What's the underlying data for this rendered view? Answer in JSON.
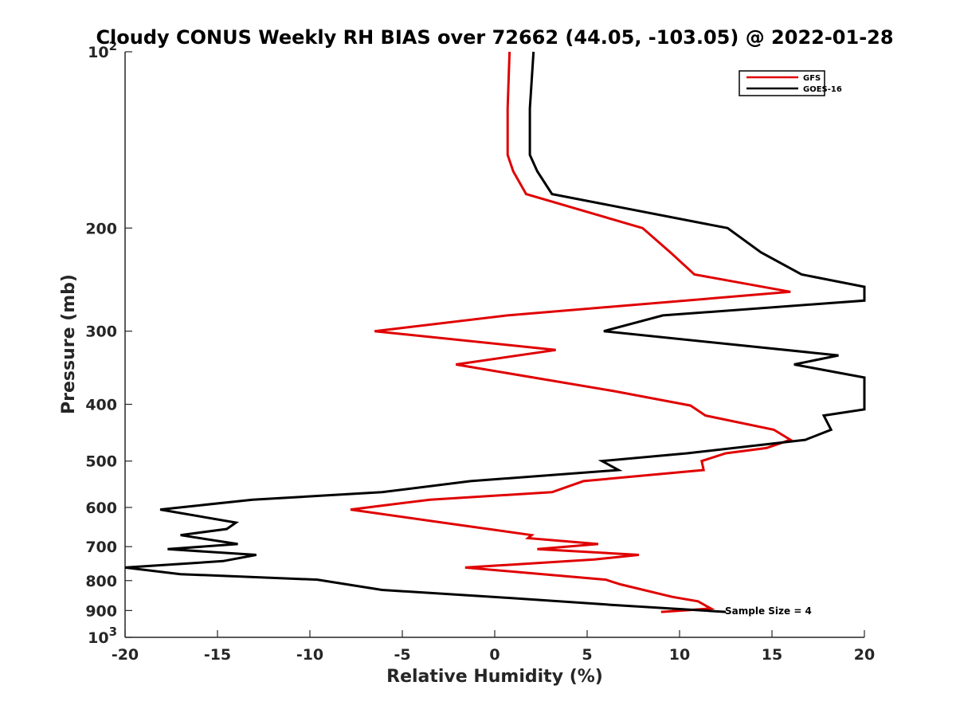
{
  "chart_data": {
    "type": "line",
    "title": "Cloudy CONUS Weekly RH BIAS over 72662 (44.05, -103.05) @ 2022-01-28",
    "xlabel": "Relative Humidity (%)",
    "ylabel": "Pressure (mb)",
    "xlim": [
      -20,
      20
    ],
    "ylim": [
      100,
      1000
    ],
    "yscale": "log",
    "y_reversed": true,
    "x_ticks": [
      "-20",
      "-15",
      "-10",
      "-5",
      "0",
      "5",
      "10",
      "15",
      "20"
    ],
    "y_tick_labels": {
      "p100": {
        "base": "10",
        "exp": "2"
      },
      "p200": "200",
      "p300": "300",
      "p400": "400",
      "p500": "500",
      "p600": "600",
      "p700": "700",
      "p800": "800",
      "p900": "900",
      "p1000": {
        "base": "10",
        "exp": "3"
      }
    },
    "grid": false,
    "legend_position": "top-right",
    "annotation": "Sample Size = 4",
    "series": [
      {
        "name": "GFS",
        "color": "#e00000",
        "points": [
          [
            0.8,
            100
          ],
          [
            0.7,
            125
          ],
          [
            0.7,
            150
          ],
          [
            1.0,
            160
          ],
          [
            1.7,
            175
          ],
          [
            8.0,
            200
          ],
          [
            9.5,
            220
          ],
          [
            10.8,
            240
          ],
          [
            16.0,
            257
          ],
          [
            0.7,
            282
          ],
          [
            -6.5,
            300
          ],
          [
            3.3,
            323
          ],
          [
            -2.1,
            342
          ],
          [
            6.5,
            380
          ],
          [
            10.6,
            402
          ],
          [
            11.4,
            418
          ],
          [
            15.1,
            442
          ],
          [
            16.0,
            460
          ],
          [
            14.7,
            475
          ],
          [
            12.5,
            485
          ],
          [
            11.2,
            500
          ],
          [
            11.3,
            518
          ],
          [
            4.8,
            541
          ],
          [
            3.1,
            565
          ],
          [
            -3.5,
            582
          ],
          [
            -7.8,
            605
          ],
          [
            -1.9,
            643
          ],
          [
            2.0,
            669
          ],
          [
            1.8,
            677
          ],
          [
            5.6,
            693
          ],
          [
            2.3,
            707
          ],
          [
            7.8,
            723
          ],
          [
            5.4,
            736
          ],
          [
            -1.6,
            760
          ],
          [
            6.0,
            797
          ],
          [
            6.8,
            812
          ],
          [
            9.6,
            853
          ],
          [
            11.0,
            868
          ],
          [
            11.7,
            893
          ],
          [
            9.0,
            905
          ]
        ]
      },
      {
        "name": "GOES-16",
        "color": "#000000",
        "points": [
          [
            2.1,
            100
          ],
          [
            1.9,
            125
          ],
          [
            1.9,
            150
          ],
          [
            2.3,
            160
          ],
          [
            3.1,
            175
          ],
          [
            12.6,
            200
          ],
          [
            14.4,
            220
          ],
          [
            16.6,
            240
          ],
          [
            20.0,
            252
          ],
          [
            20.0,
            266
          ],
          [
            9.1,
            282
          ],
          [
            5.9,
            300
          ],
          [
            18.6,
            330
          ],
          [
            16.2,
            342
          ],
          [
            20.0,
            360
          ],
          [
            20.0,
            408
          ],
          [
            17.8,
            418
          ],
          [
            18.2,
            442
          ],
          [
            16.8,
            460
          ],
          [
            10.4,
            485
          ],
          [
            5.8,
            500
          ],
          [
            6.7,
            518
          ],
          [
            -1.3,
            541
          ],
          [
            -6.1,
            565
          ],
          [
            -13.1,
            582
          ],
          [
            -18.1,
            605
          ],
          [
            -14.0,
            637
          ],
          [
            -14.5,
            653
          ],
          [
            -17.0,
            669
          ],
          [
            -13.9,
            693
          ],
          [
            -17.7,
            707
          ],
          [
            -12.9,
            723
          ],
          [
            -14.7,
            741
          ],
          [
            -20.0,
            760
          ],
          [
            -17.0,
            780
          ],
          [
            -9.6,
            797
          ],
          [
            -6.1,
            830
          ],
          [
            -0.1,
            853
          ],
          [
            6.3,
            880
          ],
          [
            12.5,
            905
          ]
        ]
      }
    ]
  }
}
